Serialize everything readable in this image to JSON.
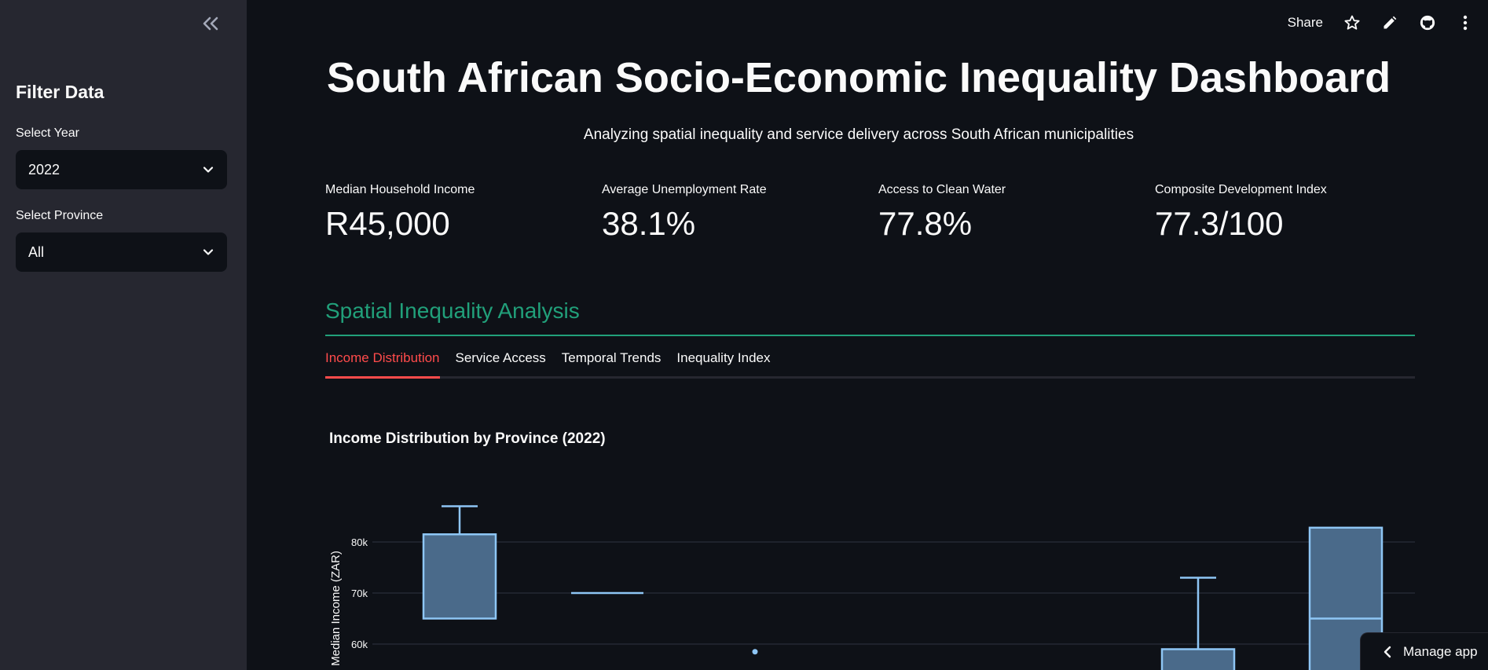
{
  "sidebar": {
    "title": "Filter Data",
    "year": {
      "label": "Select Year",
      "value": "2022"
    },
    "province": {
      "label": "Select Province",
      "value": "All"
    }
  },
  "toolbar": {
    "share_label": "Share"
  },
  "main": {
    "title": "South African Socio-Economic Inequality Dashboard",
    "subtitle": "Analyzing spatial inequality and service delivery across South African municipalities",
    "metrics": [
      {
        "label": "Median Household Income",
        "value": "R45,000"
      },
      {
        "label": "Average Unemployment Rate",
        "value": "38.1%"
      },
      {
        "label": "Access to Clean Water",
        "value": "77.8%"
      },
      {
        "label": "Composite Development Index",
        "value": "77.3/100"
      }
    ],
    "section_title": "Spatial Inequality Analysis",
    "tabs": [
      {
        "label": "Income Distribution",
        "active": true
      },
      {
        "label": "Service Access",
        "active": false
      },
      {
        "label": "Temporal Trends",
        "active": false
      },
      {
        "label": "Inequality Index",
        "active": false
      }
    ]
  },
  "chart_data": {
    "type": "box",
    "title": "Income Distribution by Province (2022)",
    "ylabel": "Median Income (ZAR)",
    "yticks": [
      "80k",
      "70k",
      "60k"
    ],
    "ylim_visible": [
      55000,
      87000
    ],
    "grid": true,
    "boxes": [
      {
        "slot": 0,
        "q1": 65000,
        "q3": 81500,
        "whisker_high": 87000
      },
      {
        "slot": 1,
        "median": 70000,
        "flat": true
      },
      {
        "slot": 2,
        "outlier": 58500
      },
      {
        "slot": 5,
        "q3": 59000,
        "whisker_high": 73000
      },
      {
        "slot": 6,
        "median": 65000,
        "q3": 82800
      }
    ],
    "colors": {
      "box_fill": "#4a6a8a",
      "box_stroke": "#8ec6f5",
      "grid": "#2e3440"
    }
  },
  "manage_app": {
    "label": "Manage app"
  },
  "colors": {
    "accent": "#ff4b4b",
    "section": "#21a07a",
    "sidebar_bg": "#262730",
    "main_bg": "#0e1117"
  }
}
